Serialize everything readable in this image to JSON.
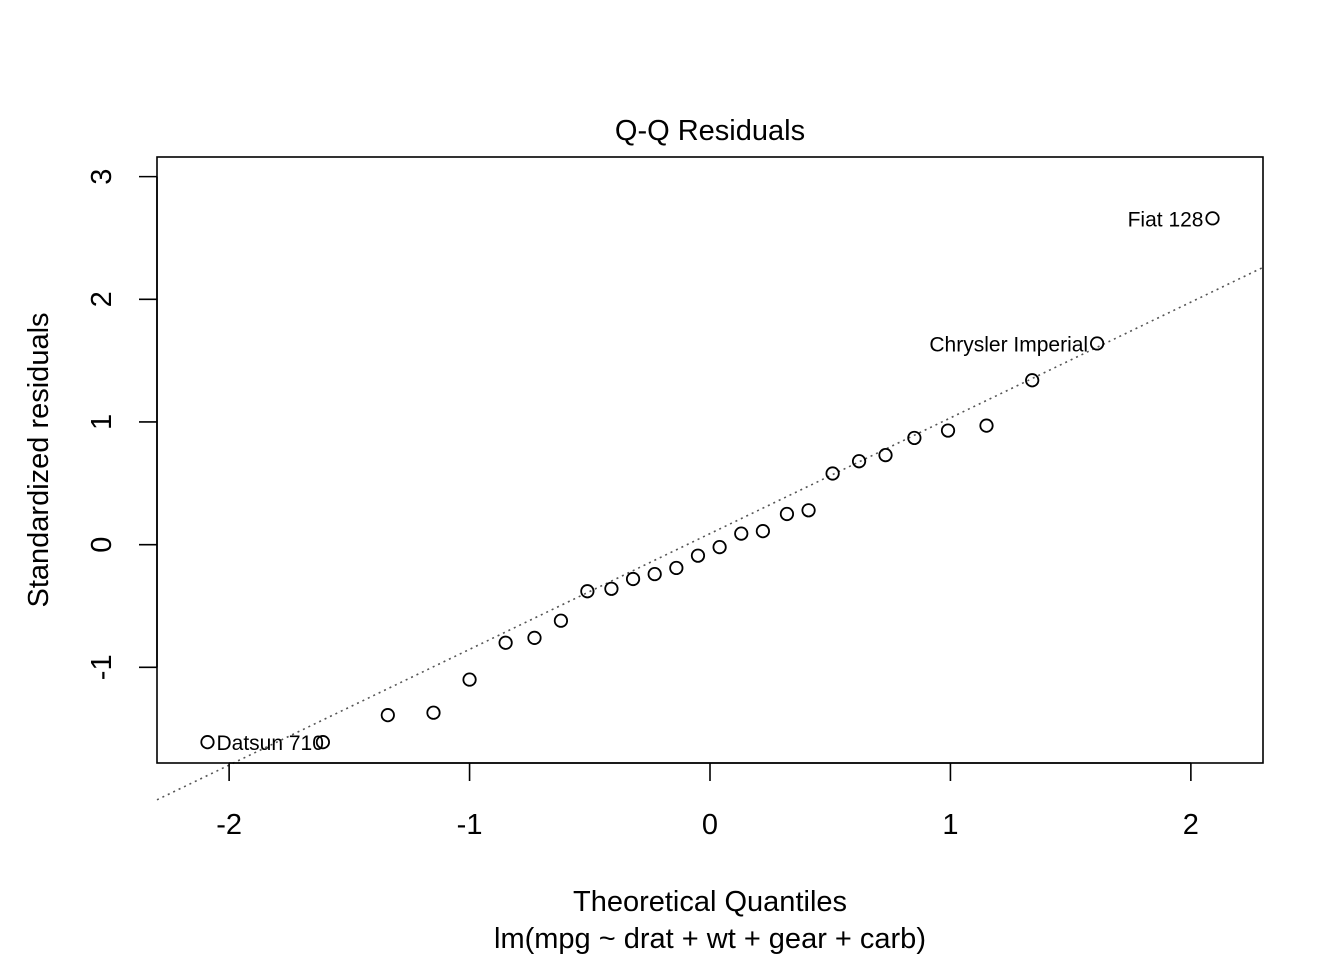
{
  "chart_data": {
    "type": "scatter",
    "title": "Q-Q Residuals",
    "xlabel": "Theoretical Quantiles",
    "subtitle": "lm(mpg ~ drat + wt + gear + carb)",
    "ylabel": "Standardized residuals",
    "xlim": [
      -2.3,
      2.3
    ],
    "ylim": [
      -1.78,
      3.16
    ],
    "xticks": [
      -2,
      -1,
      0,
      1,
      2
    ],
    "xtick_labels": [
      "-2",
      "-1",
      "0",
      "1",
      "2"
    ],
    "yticks": [
      -1,
      0,
      1,
      2,
      3
    ],
    "ytick_labels": [
      "-1",
      "0",
      "1",
      "2",
      "3"
    ],
    "grid": false,
    "reference_line": {
      "style": "dotted",
      "color": "#555555",
      "x": [
        -2.3,
        2.3
      ],
      "y": [
        -2.08,
        2.26
      ]
    },
    "points": [
      {
        "x": -2.09,
        "y": -1.61
      },
      {
        "x": -1.61,
        "y": -1.61
      },
      {
        "x": -1.34,
        "y": -1.39
      },
      {
        "x": -1.15,
        "y": -1.37
      },
      {
        "x": -1.0,
        "y": -1.1
      },
      {
        "x": -0.85,
        "y": -0.8
      },
      {
        "x": -0.73,
        "y": -0.76
      },
      {
        "x": -0.62,
        "y": -0.62
      },
      {
        "x": -0.51,
        "y": -0.38
      },
      {
        "x": -0.41,
        "y": -0.36
      },
      {
        "x": -0.32,
        "y": -0.28
      },
      {
        "x": -0.23,
        "y": -0.24
      },
      {
        "x": -0.14,
        "y": -0.19
      },
      {
        "x": -0.05,
        "y": -0.09
      },
      {
        "x": 0.04,
        "y": -0.02
      },
      {
        "x": 0.13,
        "y": 0.09
      },
      {
        "x": 0.22,
        "y": 0.11
      },
      {
        "x": 0.32,
        "y": 0.25
      },
      {
        "x": 0.41,
        "y": 0.28
      },
      {
        "x": 0.51,
        "y": 0.58
      },
      {
        "x": 0.62,
        "y": 0.68
      },
      {
        "x": 0.73,
        "y": 0.73
      },
      {
        "x": 0.85,
        "y": 0.87
      },
      {
        "x": 0.99,
        "y": 0.93
      },
      {
        "x": 1.15,
        "y": 0.97
      },
      {
        "x": 1.34,
        "y": 1.34
      },
      {
        "x": 1.61,
        "y": 1.64
      },
      {
        "x": 2.09,
        "y": 2.66
      }
    ],
    "labels": [
      {
        "text": "Datsun 710",
        "x": -2.09,
        "y": -1.61,
        "side": "right"
      },
      {
        "text": "Chrysler Imperial",
        "x": 1.61,
        "y": 1.64,
        "side": "left"
      },
      {
        "text": "Fiat 128",
        "x": 2.09,
        "y": 2.66,
        "side": "left"
      }
    ]
  }
}
